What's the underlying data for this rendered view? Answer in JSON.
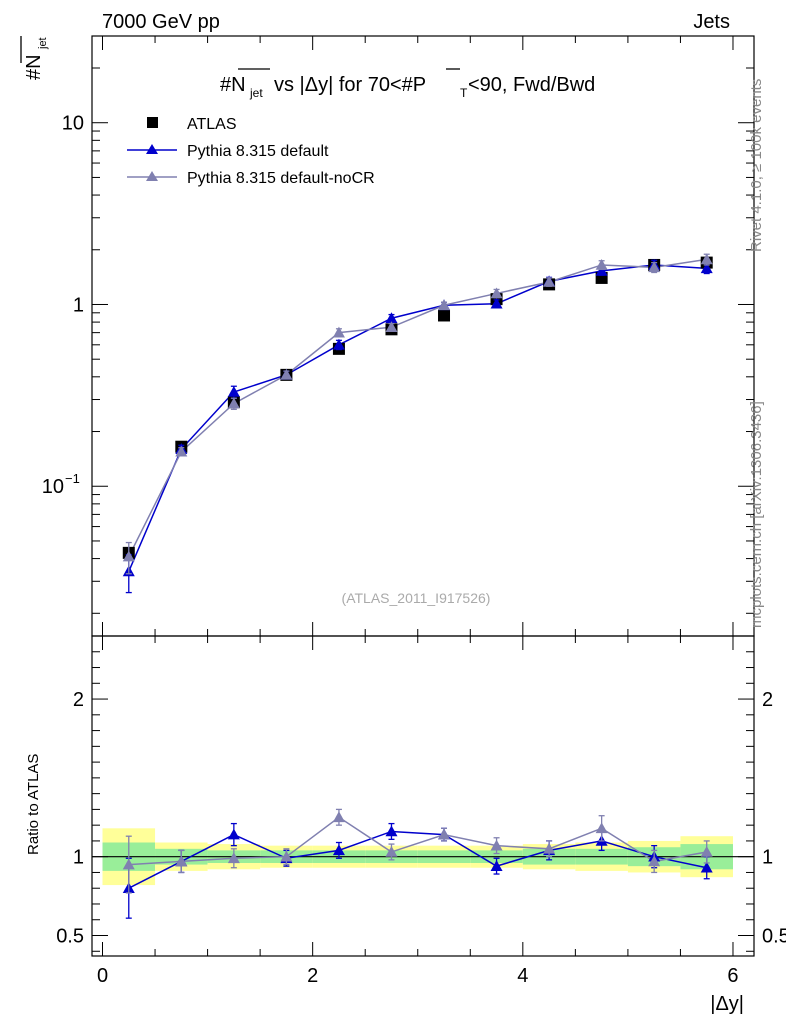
{
  "header": {
    "left": "7000 GeV pp",
    "right": "Jets"
  },
  "side_labels": {
    "rivet": "Rivet 4.1.0, ≥ 100k events",
    "mcplots": "mcplots.cern.ch [arXiv:1306.3436]"
  },
  "chart_data": {
    "type": "scatter",
    "title": "#N_jet vs |Δy| for 70<#P_T<90, Fwd/Bwd",
    "analysis": "(ATLAS_2011_I917526)",
    "xlabel": "|Δy|",
    "ylabel_main": "#N_jet",
    "ylabel_ratio": "Ratio to ATLAS",
    "xlim": [
      -0.1,
      6.2
    ],
    "ylim_main": [
      0.015,
      30
    ],
    "ylim_ratio": [
      0.37,
      2.4
    ],
    "x_ticks": [
      0,
      2,
      4,
      6
    ],
    "y_ticks_main": [
      0.1,
      1,
      10
    ],
    "y_tick_labels_main": [
      "10^-1",
      "1",
      "10"
    ],
    "y_ticks_ratio": [
      0.5,
      1,
      2
    ],
    "y_tick_labels_ratio": [
      "0.5",
      "1",
      "2"
    ],
    "legend": [
      "ATLAS",
      "Pythia 8.315 default",
      "Pythia 8.315 default-noCR"
    ],
    "series": [
      {
        "name": "ATLAS",
        "color": "#000000",
        "marker": "square",
        "x": [
          0.25,
          0.75,
          1.25,
          1.75,
          2.25,
          2.75,
          3.25,
          3.75,
          4.25,
          4.75,
          5.25,
          5.75
        ],
        "y": [
          0.043,
          0.165,
          0.29,
          0.41,
          0.57,
          0.73,
          0.87,
          1.07,
          1.29,
          1.4,
          1.65,
          1.7
        ]
      },
      {
        "name": "Pythia 8.315 default",
        "color": "#0000cc",
        "marker": "triangle",
        "x": [
          0.25,
          0.75,
          1.25,
          1.75,
          2.25,
          2.75,
          3.25,
          3.75,
          4.25,
          4.75,
          5.25,
          5.75
        ],
        "y": [
          0.034,
          0.16,
          0.33,
          0.41,
          0.6,
          0.84,
          0.99,
          1.01,
          1.34,
          1.53,
          1.65,
          1.58
        ],
        "err": [
          0.008,
          0.008,
          0.025,
          0.02,
          0.035,
          0.04,
          0.04,
          0.05,
          0.07,
          0.08,
          0.1,
          0.1
        ],
        "ratio": [
          0.8,
          0.97,
          1.14,
          0.99,
          1.04,
          1.16,
          1.14,
          0.94,
          1.04,
          1.1,
          1.0,
          0.93
        ],
        "ratio_err": [
          0.19,
          0.07,
          0.07,
          0.05,
          0.05,
          0.05,
          0.04,
          0.05,
          0.06,
          0.06,
          0.07,
          0.07
        ]
      },
      {
        "name": "Pythia 8.315 default-noCR",
        "color": "#8080b0",
        "marker": "triangle",
        "x": [
          0.25,
          0.75,
          1.25,
          1.75,
          2.25,
          2.75,
          3.25,
          3.75,
          4.25,
          4.75,
          5.25,
          5.75
        ],
        "y": [
          0.041,
          0.155,
          0.285,
          0.41,
          0.7,
          0.75,
          0.99,
          1.15,
          1.33,
          1.65,
          1.6,
          1.77
        ],
        "err": [
          0.008,
          0.008,
          0.02,
          0.02,
          0.035,
          0.035,
          0.04,
          0.06,
          0.07,
          0.09,
          0.1,
          0.12
        ],
        "ratio": [
          0.95,
          0.97,
          0.99,
          1.0,
          1.25,
          1.03,
          1.14,
          1.07,
          1.05,
          1.18,
          0.97,
          1.03
        ],
        "ratio_err": [
          0.18,
          0.07,
          0.06,
          0.05,
          0.05,
          0.05,
          0.04,
          0.05,
          0.05,
          0.08,
          0.07,
          0.07
        ]
      }
    ],
    "ratio_bands": {
      "x_edges": [
        0.0,
        0.5,
        1.0,
        1.5,
        2.0,
        2.5,
        3.0,
        3.5,
        4.0,
        4.5,
        5.0,
        5.5,
        6.0
      ],
      "green_lo": [
        0.91,
        0.95,
        0.96,
        0.96,
        0.96,
        0.96,
        0.96,
        0.96,
        0.95,
        0.95,
        0.94,
        0.92
      ],
      "green_hi": [
        1.09,
        1.05,
        1.04,
        1.04,
        1.04,
        1.04,
        1.04,
        1.04,
        1.05,
        1.05,
        1.06,
        1.08
      ],
      "yellow_lo": [
        0.82,
        0.91,
        0.92,
        0.93,
        0.93,
        0.93,
        0.93,
        0.93,
        0.92,
        0.91,
        0.9,
        0.87
      ],
      "yellow_hi": [
        1.18,
        1.09,
        1.08,
        1.07,
        1.07,
        1.07,
        1.07,
        1.07,
        1.08,
        1.09,
        1.1,
        1.13
      ]
    }
  }
}
